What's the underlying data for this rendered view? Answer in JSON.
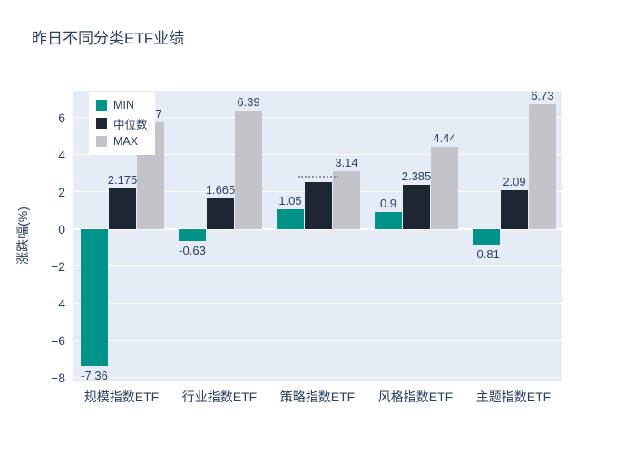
{
  "title": "昨日不同分类ETF业绩",
  "colors": {
    "min": "#00938A",
    "median": "#1C2733",
    "max": "#C2C4C9",
    "plot_bg": "#E5ECF6",
    "grid": "#FFFFFF",
    "text": "#2A3F5F",
    "paper_bg": "#FFFFFF"
  },
  "legend": [
    {
      "label": "MIN",
      "color_key": "min"
    },
    {
      "label": "中位数",
      "color_key": "median"
    },
    {
      "label": "MAX",
      "color_key": "max"
    }
  ],
  "yaxis": {
    "title": "涨跌幅(%)",
    "tick_labels": [
      "6",
      "4",
      "2",
      "0",
      "−2",
      "−4",
      "−6",
      "−8"
    ],
    "tick_values": [
      6,
      4,
      2,
      0,
      -2,
      -4,
      -6,
      -8
    ]
  },
  "chart_data": {
    "type": "bar",
    "title": "昨日不同分类ETF业绩",
    "xlabel": "",
    "ylabel": "涨跌幅(%)",
    "categories": [
      "规模指数ETF",
      "行业指数ETF",
      "策略指数ETF",
      "风格指数ETF",
      "主题指数ETF"
    ],
    "series": [
      {
        "name": "MIN",
        "color_key": "min",
        "values": [
          -7.36,
          -0.63,
          1.05,
          0.9,
          -0.81
        ],
        "labels": [
          "-7.36",
          "-0.63",
          "1.05",
          "0.9",
          "-0.81"
        ]
      },
      {
        "name": "中位数",
        "color_key": "median",
        "values": [
          2.175,
          1.665,
          2.55,
          2.385,
          2.09
        ],
        "labels": [
          "2.175",
          "1.665",
          "",
          "2.385",
          "2.09"
        ],
        "compressed_label_index": 2
      },
      {
        "name": "MAX",
        "color_key": "max",
        "values": [
          5.77,
          6.39,
          3.14,
          4.44,
          6.73
        ],
        "labels": [
          "5.77",
          "6.39",
          "3.14",
          "4.44",
          "6.73"
        ]
      }
    ],
    "ylim": [
      -8.2,
      7.46
    ],
    "grid": true,
    "legend_position": "top-left-inside"
  }
}
